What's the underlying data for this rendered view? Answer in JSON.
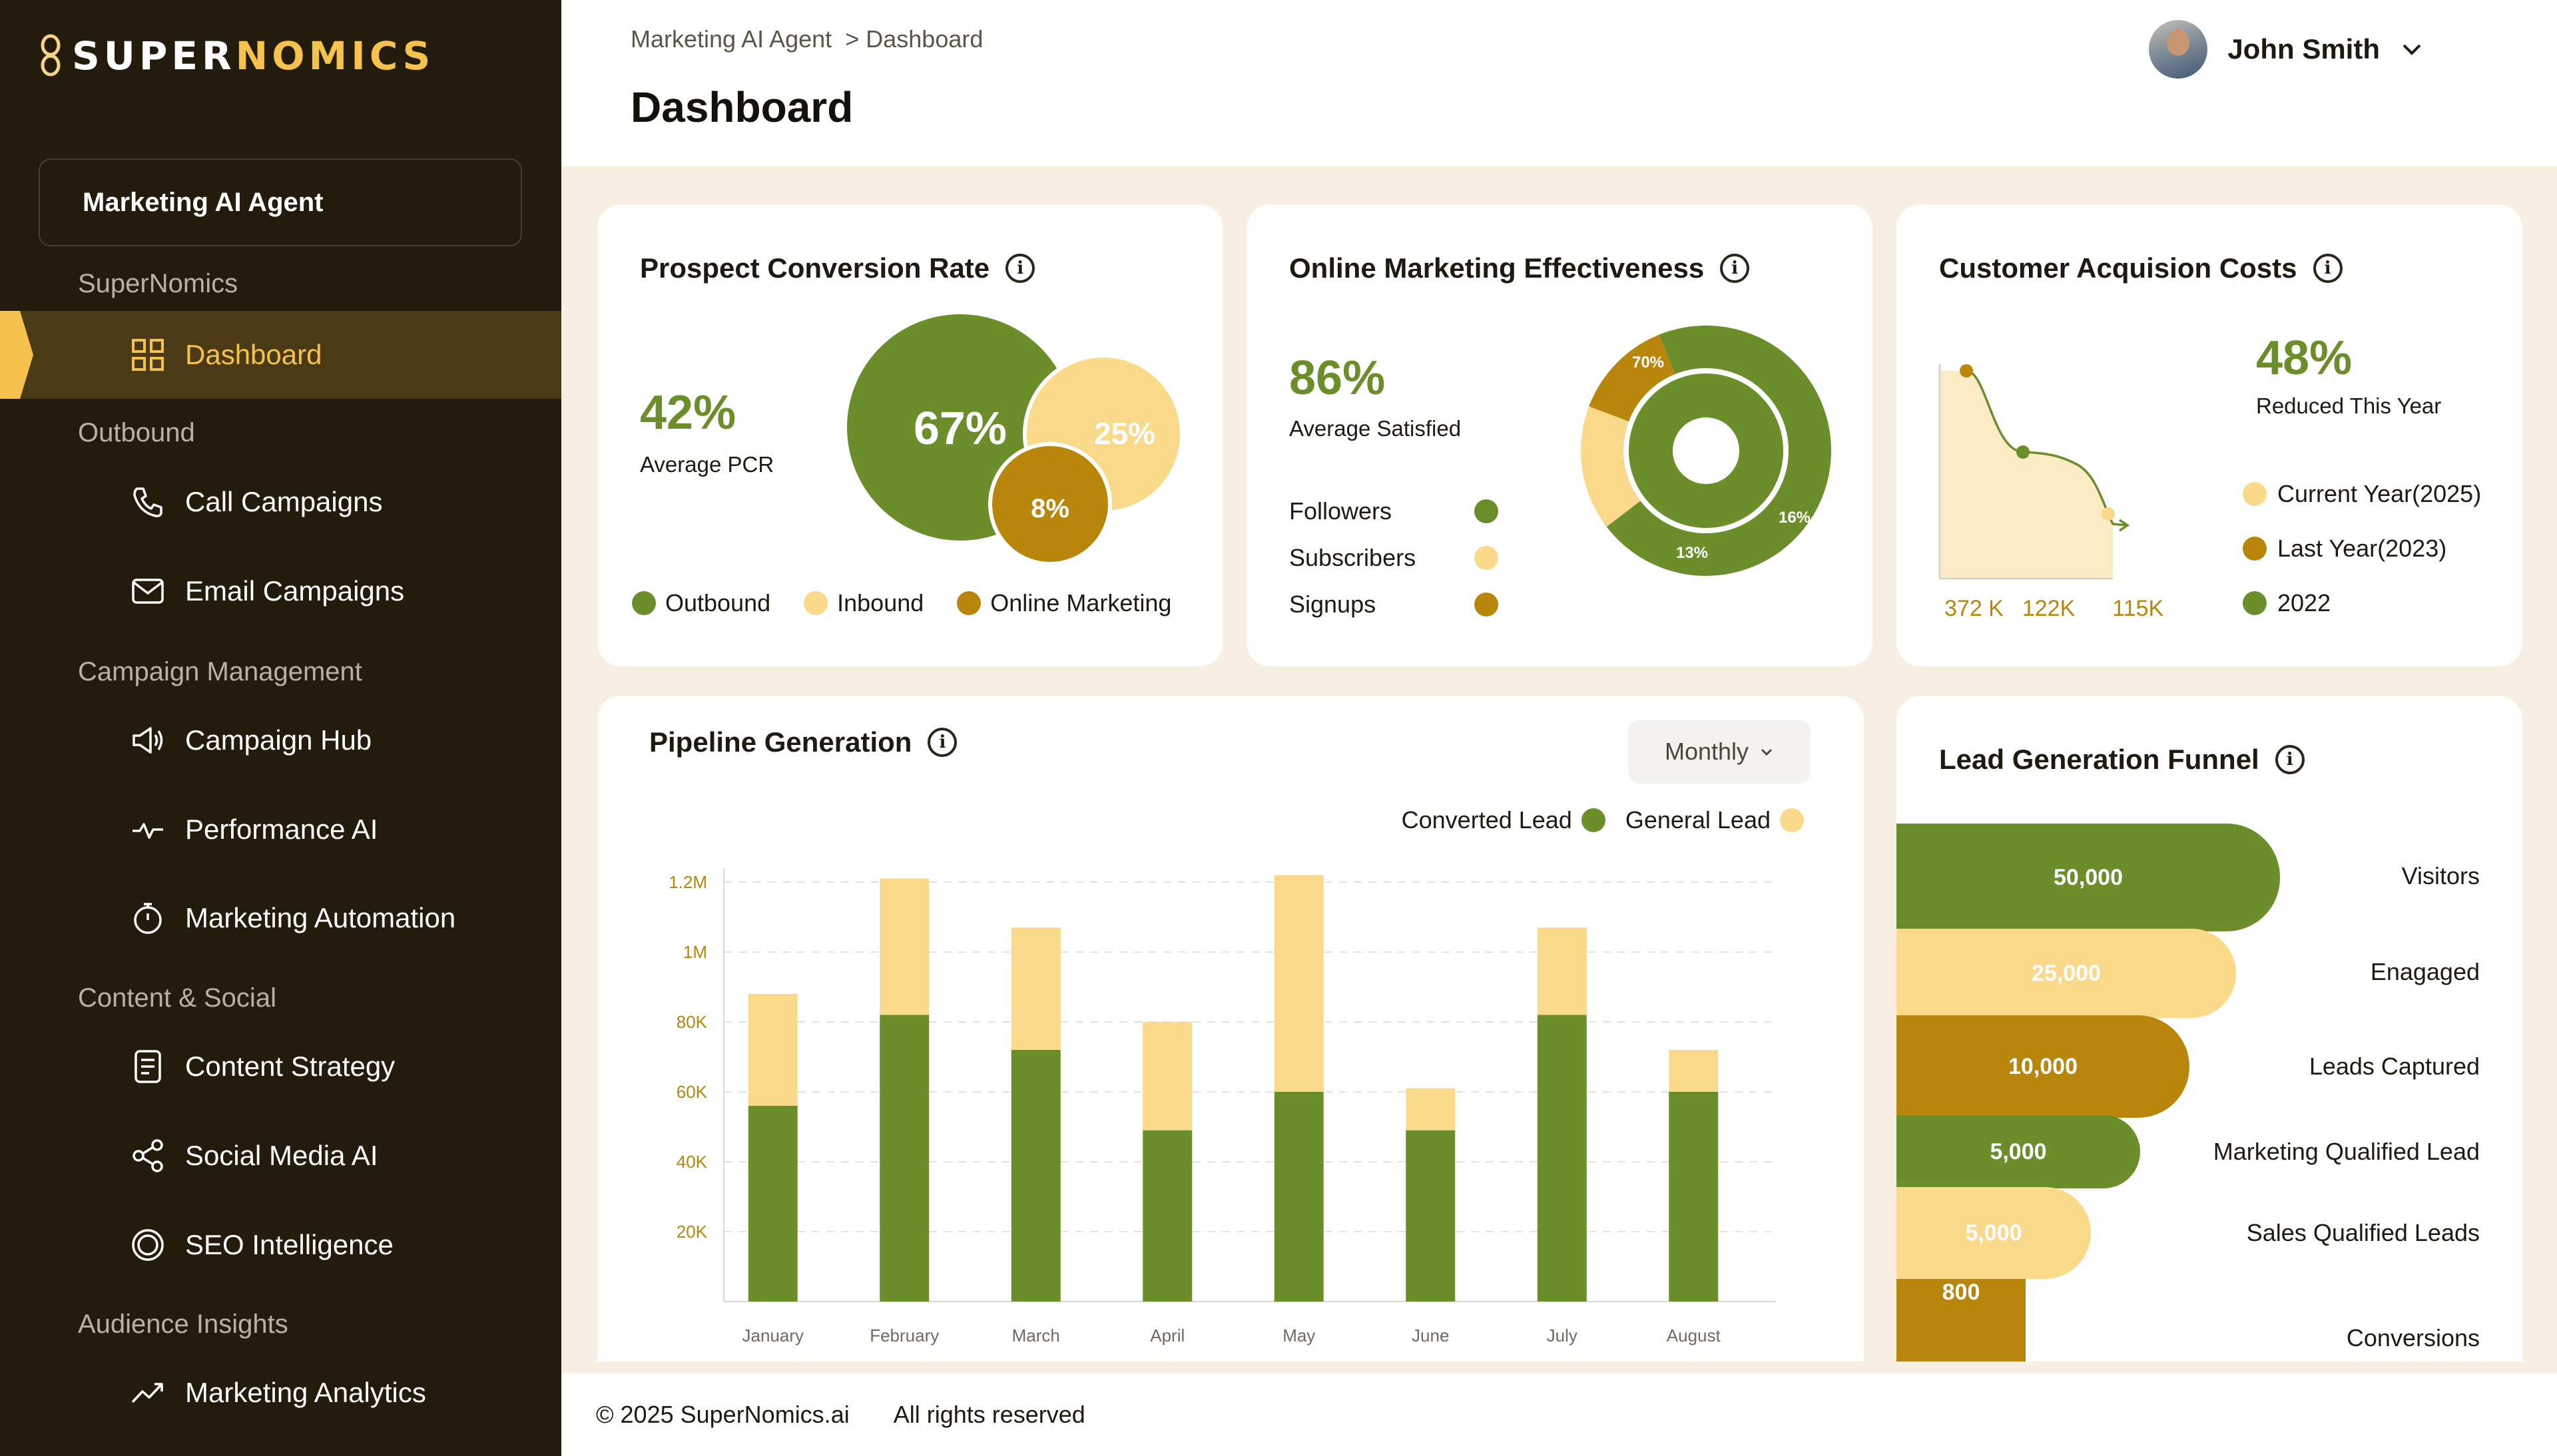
{
  "brand": {
    "name_part1": "SUPER",
    "name_part2": "NOMICS"
  },
  "sidebar": {
    "agent": "Marketing AI Agent",
    "sections": [
      {
        "title": "SuperNomics",
        "items": [
          {
            "label": "Dashboard",
            "icon": "grid-icon",
            "active": true
          }
        ]
      },
      {
        "title": "Outbound",
        "items": [
          {
            "label": "Call Campaigns",
            "icon": "phone-icon"
          },
          {
            "label": "Email Campaigns",
            "icon": "mail-icon"
          }
        ]
      },
      {
        "title": "Campaign Management",
        "items": [
          {
            "label": "Campaign Hub",
            "icon": "megaphone-icon"
          },
          {
            "label": "Performance AI",
            "icon": "pulse-icon"
          },
          {
            "label": "Marketing Automation",
            "icon": "stopwatch-icon"
          }
        ]
      },
      {
        "title": "Content & Social",
        "items": [
          {
            "label": "Content Strategy",
            "icon": "document-icon"
          },
          {
            "label": "Social Media AI",
            "icon": "share-icon"
          },
          {
            "label": "SEO Intelligence",
            "icon": "target-icon"
          }
        ]
      },
      {
        "title": "Audience Insights",
        "items": [
          {
            "label": "Marketing Analytics",
            "icon": "trending-up-icon"
          }
        ]
      }
    ]
  },
  "header": {
    "breadcrumb_root": "Marketing AI Agent",
    "breadcrumb_sep": ">",
    "breadcrumb_current": "Dashboard",
    "title": "Dashboard",
    "user_name": "John Smith"
  },
  "colors": {
    "green": "#6b8e2a",
    "light": "#fbd98a",
    "gold": "#b7860b",
    "sidebar": "#231b0b",
    "accent": "#f5c24d"
  },
  "pcr": {
    "title": "Prospect Conversion Rate",
    "value": "42%",
    "label": "Average PCR",
    "bubbles": {
      "outbound": "67%",
      "inbound": "25%",
      "online": "8%"
    },
    "legend": [
      "Outbound",
      "Inbound",
      "Online Marketing"
    ]
  },
  "ome": {
    "title": "Online Marketing Effectiveness",
    "value": "86%",
    "label": "Average Satisfied",
    "legend": [
      "Followers",
      "Subscribers",
      "Signups"
    ],
    "segments": [
      {
        "label": "70%",
        "value": 70
      },
      {
        "label": "16%",
        "value": 16
      },
      {
        "label": "13%",
        "value": 13
      }
    ]
  },
  "cac": {
    "title": "Customer Acquision Costs",
    "value": "48%",
    "label": "Reduced This Year",
    "x_labels": [
      "372 K",
      "122K",
      "115K"
    ],
    "legend": [
      "Current Year(2025)",
      "Last Year(2023)",
      "2022"
    ]
  },
  "pipeline": {
    "title": "Pipeline Generation",
    "filter": "Monthly",
    "legend": {
      "converted": "Converted Lead",
      "general": "General Lead"
    }
  },
  "chart_data": {
    "type": "bar",
    "stacked": true,
    "categories": [
      "January",
      "February",
      "March",
      "April",
      "May",
      "June",
      "July",
      "August"
    ],
    "y_ticks": [
      "20K",
      "40K",
      "60K",
      "80K",
      "1M",
      "1.2M"
    ],
    "series": [
      {
        "name": "Converted Lead",
        "values": [
          2.8,
          4.1,
          3.6,
          2.45,
          3.0,
          2.45,
          4.1,
          3.0
        ]
      },
      {
        "name": "General Lead",
        "values": [
          1.6,
          1.95,
          1.75,
          1.55,
          3.1,
          0.6,
          1.25,
          0.6
        ]
      }
    ],
    "ylim": [
      0,
      6
    ]
  },
  "funnel": {
    "title": "Lead Generation Funnel",
    "stages": [
      {
        "value": "50,000",
        "label": "Visitors"
      },
      {
        "value": "25,000",
        "label": "Enagaged"
      },
      {
        "value": "10,000",
        "label": "Leads Captured"
      },
      {
        "value": "5,000",
        "label": "Marketing Qualified Lead"
      },
      {
        "value": "5,000",
        "label": "Sales Qualified Leads"
      },
      {
        "value": "800",
        "label": "Conversions"
      }
    ]
  },
  "footer": {
    "copyright": "© 2025 SuperNomics.ai",
    "rights": "All rights reserved"
  }
}
